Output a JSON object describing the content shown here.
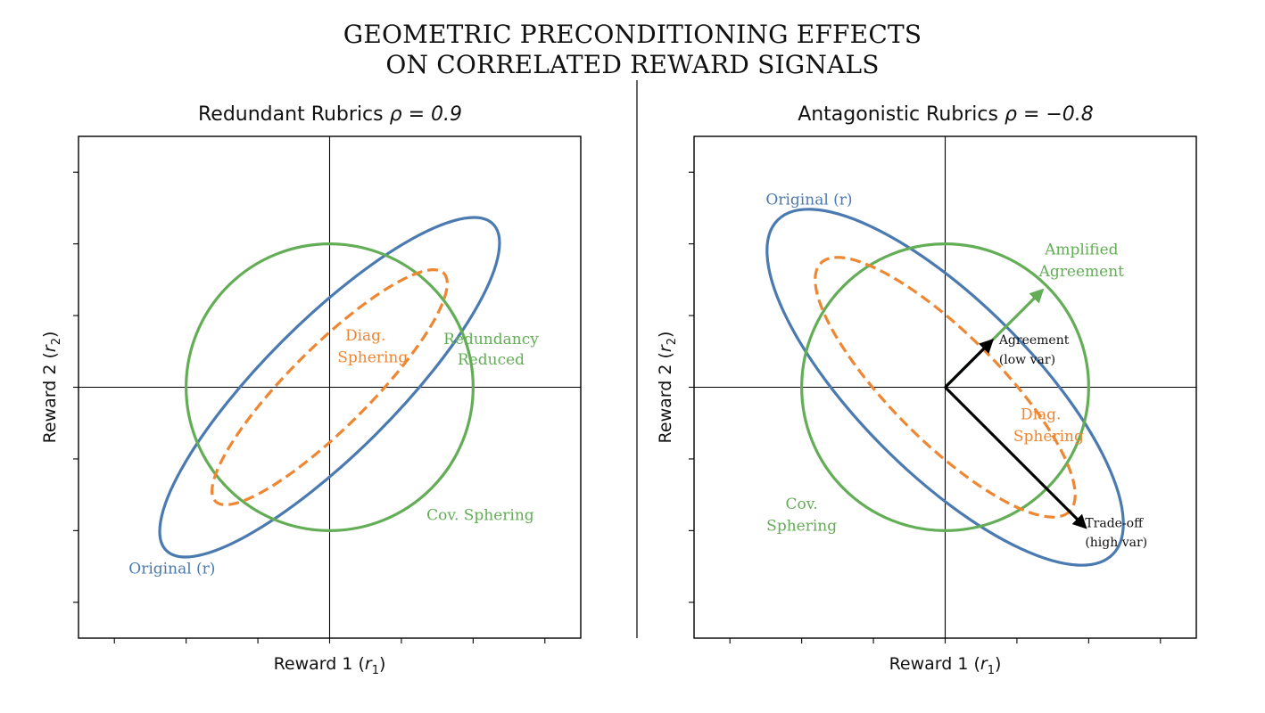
{
  "figure_title": {
    "line1": "GEOMETRIC PRECONDITIONING EFFECTS",
    "line2": "ON CORRELATED REWARD SIGNALS"
  },
  "colors": {
    "original": "#4a7ab0",
    "cov_sphering": "#62ad55",
    "diag_sphering": "#ee8632",
    "arrow_black": "#000000",
    "axis": "#000000"
  },
  "chart_data": [
    {
      "type": "line",
      "title_prefix": "Redundant Rubrics",
      "title_rho": "ρ = 0.9",
      "rho": 0.9,
      "xlabel_text": "Reward 1 (",
      "xlabel_var": "r",
      "xlabel_sub": "1",
      "xlabel_close": ")",
      "ylabel_text": "Reward 2 (",
      "ylabel_var": "r",
      "ylabel_sub": "2",
      "ylabel_close": ")",
      "xlim": [
        -3.5,
        3.5
      ],
      "ylim": [
        -3.5,
        3.5
      ],
      "xticks": [
        -3,
        -2,
        -1,
        0,
        1,
        2,
        3
      ],
      "yticks": [
        -3,
        -2,
        -1,
        0,
        1,
        2,
        3
      ],
      "tick_labels_visible": false,
      "series": [
        {
          "name": "Original (r)",
          "kind": "ellipse",
          "center": [
            0,
            0
          ],
          "semi_major": 3.22,
          "semi_minor": 0.92,
          "angle_deg": 45,
          "style": "solid",
          "color_key": "original"
        },
        {
          "name": "Cov. Sphering",
          "kind": "ellipse",
          "center": [
            0,
            0
          ],
          "semi_major": 2.0,
          "semi_minor": 2.0,
          "angle_deg": 0,
          "style": "solid",
          "color_key": "cov_sphering"
        },
        {
          "name": "Diag. Sphering",
          "kind": "ellipse",
          "center": [
            0,
            0
          ],
          "semi_major": 2.25,
          "semi_minor": 0.56,
          "angle_deg": 45,
          "style": "dashed",
          "color_key": "diag_sphering"
        }
      ],
      "annotations": [
        {
          "text": "Original (r)",
          "x": -2.8,
          "y": -2.6,
          "color_key": "original",
          "anchor": "start"
        },
        {
          "text": "Diag.",
          "x": 0.5,
          "y": 0.65,
          "color_key": "diag_sphering",
          "anchor": "middle"
        },
        {
          "text": "Sphering",
          "x": 0.6,
          "y": 0.35,
          "color_key": "diag_sphering",
          "anchor": "middle"
        },
        {
          "text": "Redundancy",
          "x": 2.25,
          "y": 0.6,
          "color_key": "cov_sphering",
          "anchor": "middle"
        },
        {
          "text": "Reduced",
          "x": 2.25,
          "y": 0.32,
          "color_key": "cov_sphering",
          "anchor": "middle"
        },
        {
          "text": "Cov. Sphering",
          "x": 2.1,
          "y": -1.85,
          "color_key": "cov_sphering",
          "anchor": "middle"
        }
      ],
      "arrows": []
    },
    {
      "type": "line",
      "title_prefix": "Antagonistic Rubrics",
      "title_rho": "ρ = −0.8",
      "rho": -0.8,
      "xlabel_text": "Reward 1 (",
      "xlabel_var": "r",
      "xlabel_sub": "1",
      "xlabel_close": ")",
      "ylabel_text": "Reward 2 (",
      "ylabel_var": "r",
      "ylabel_sub": "2",
      "ylabel_close": ")",
      "xlim": [
        -3.5,
        3.5
      ],
      "ylim": [
        -3.5,
        3.5
      ],
      "xticks": [
        -3,
        -2,
        -1,
        0,
        1,
        2,
        3
      ],
      "yticks": [
        -3,
        -2,
        -1,
        0,
        1,
        2,
        3
      ],
      "tick_labels_visible": false,
      "series": [
        {
          "name": "Original (r)",
          "kind": "ellipse",
          "center": [
            0,
            0
          ],
          "semi_major": 3.3,
          "semi_minor": 1.2,
          "angle_deg": -45,
          "style": "solid",
          "color_key": "original"
        },
        {
          "name": "Cov. Sphering",
          "kind": "ellipse",
          "center": [
            0,
            0
          ],
          "semi_major": 2.0,
          "semi_minor": 2.0,
          "angle_deg": 0,
          "style": "solid",
          "color_key": "cov_sphering"
        },
        {
          "name": "Diag. Sphering",
          "kind": "ellipse",
          "center": [
            0,
            0
          ],
          "semi_major": 2.45,
          "semi_minor": 0.75,
          "angle_deg": -45,
          "style": "dashed",
          "color_key": "diag_sphering"
        }
      ],
      "annotations": [
        {
          "text": "Original (r)",
          "x": -2.5,
          "y": 2.55,
          "color_key": "original",
          "anchor": "start"
        },
        {
          "text": "Amplified",
          "x": 1.9,
          "y": 1.85,
          "color_key": "cov_sphering",
          "anchor": "middle"
        },
        {
          "text": "Agreement",
          "x": 1.9,
          "y": 1.55,
          "color_key": "cov_sphering",
          "anchor": "middle"
        },
        {
          "text": "Diag.",
          "x": 1.05,
          "y": -0.45,
          "color_key": "diag_sphering",
          "anchor": "start"
        },
        {
          "text": "Sphering",
          "x": 0.95,
          "y": -0.75,
          "color_key": "diag_sphering",
          "anchor": "start"
        },
        {
          "text": "Cov.",
          "x": -2.0,
          "y": -1.7,
          "color_key": "cov_sphering",
          "anchor": "middle"
        },
        {
          "text": "Sphering",
          "x": -2.0,
          "y": -2.0,
          "color_key": "cov_sphering",
          "anchor": "middle"
        }
      ],
      "annotations_small": [
        {
          "text": "Agreement",
          "x": 0.75,
          "y": 0.6
        },
        {
          "text": "(low var)",
          "x": 0.75,
          "y": 0.33
        },
        {
          "text": "Trade-off",
          "x": 1.95,
          "y": -1.95
        },
        {
          "text": "(high var)",
          "x": 1.95,
          "y": -2.22
        }
      ],
      "arrows": [
        {
          "name": "amplified-agreement-arrow",
          "from": [
            0,
            0
          ],
          "to": [
            1.35,
            1.35
          ],
          "color_key": "cov_sphering"
        },
        {
          "name": "agreement-arrow",
          "from": [
            0,
            0
          ],
          "to": [
            0.65,
            0.65
          ],
          "color_key": "arrow_black"
        },
        {
          "name": "tradeoff-arrow",
          "from": [
            0,
            0
          ],
          "to": [
            1.95,
            -1.95
          ],
          "color_key": "arrow_black"
        }
      ]
    }
  ]
}
